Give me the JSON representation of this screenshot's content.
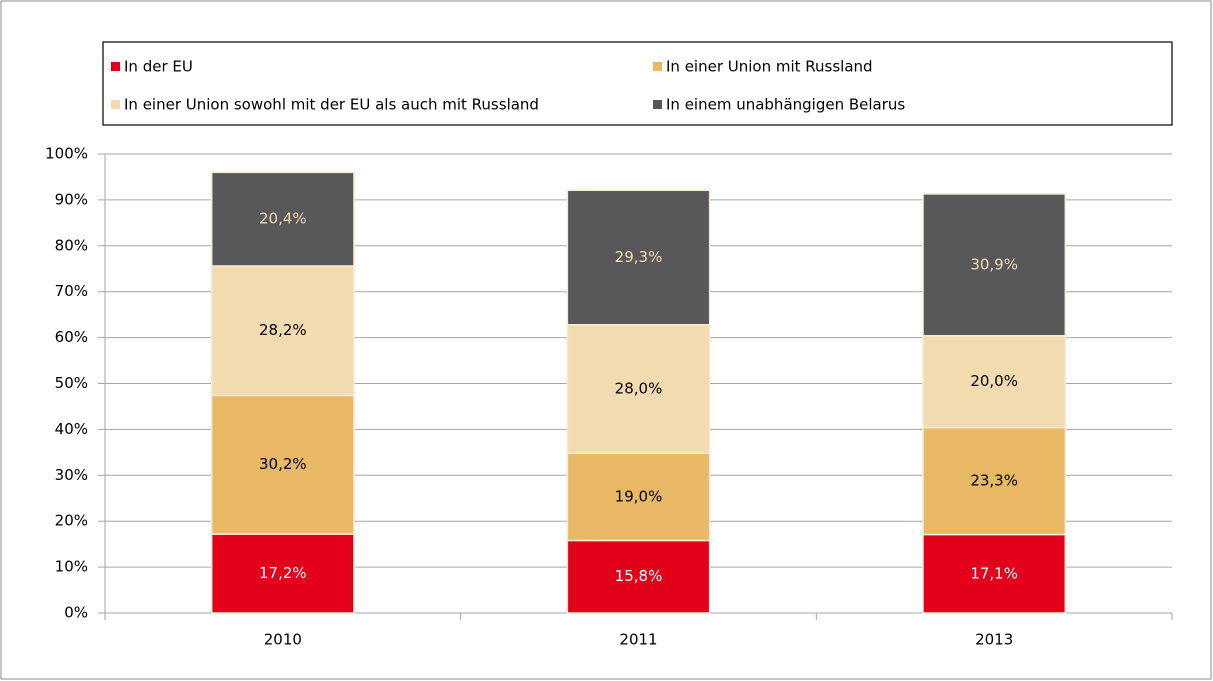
{
  "chart_data": {
    "type": "stacked_bar",
    "categories": [
      "2010",
      "2011",
      "2013"
    ],
    "series": [
      {
        "name": "In der EU",
        "color": "#e2001a",
        "label_color": "#ffffff",
        "values": [
          17.2,
          15.8,
          17.1
        ],
        "value_labels": [
          "17,2%",
          "15,8%",
          "17,1%"
        ]
      },
      {
        "name": "In einer Union mit Russland",
        "color": "#e8b865",
        "label_color": "#000000",
        "values": [
          30.2,
          19.0,
          23.3
        ],
        "value_labels": [
          "30,2%",
          "19,0%",
          "23,3%"
        ]
      },
      {
        "name": "In einer Union sowohl mit der EU als auch mit Russland",
        "color": "#f3dbb0",
        "label_color": "#000000",
        "values": [
          28.2,
          28.0,
          20.0
        ],
        "value_labels": [
          "28,2%",
          "28,0%",
          "20,0%"
        ]
      },
      {
        "name": "In einem unabhängigen Belarus",
        "color": "#58585a",
        "label_color": "#f3dbb0",
        "values": [
          20.4,
          29.3,
          30.9
        ],
        "value_labels": [
          "20,4%",
          "29,3%",
          "30,9%"
        ]
      }
    ],
    "ylim": [
      0,
      100
    ],
    "yticks": [
      {
        "value": 0,
        "label": "0%"
      },
      {
        "value": 10,
        "label": "10%"
      },
      {
        "value": 20,
        "label": "20%"
      },
      {
        "value": 30,
        "label": "30%"
      },
      {
        "value": 40,
        "label": "40%"
      },
      {
        "value": 50,
        "label": "50%"
      },
      {
        "value": 60,
        "label": "60%"
      },
      {
        "value": 70,
        "label": "70%"
      },
      {
        "value": 80,
        "label": "80%"
      },
      {
        "value": 90,
        "label": "90%"
      },
      {
        "value": 100,
        "label": "100%"
      }
    ],
    "grid": true,
    "legend": "top"
  }
}
